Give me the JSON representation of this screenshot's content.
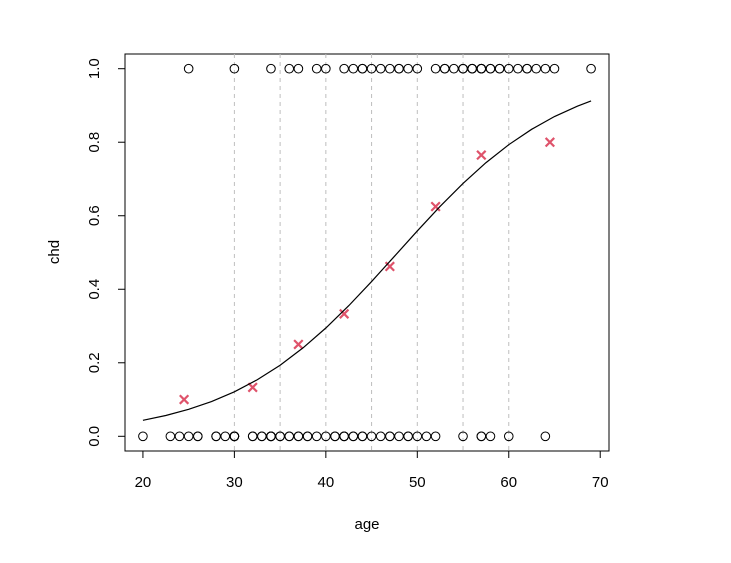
{
  "chart_data": {
    "type": "scatter",
    "xlabel": "age",
    "ylabel": "chd",
    "xlim": [
      18.04,
      70.96
    ],
    "ylim": [
      -0.04,
      1.04
    ],
    "xticks": [
      20,
      30,
      40,
      50,
      60,
      70
    ],
    "yticks": [
      {
        "value": 0,
        "label": "0.0"
      },
      {
        "value": 0.2,
        "label": "0.2"
      },
      {
        "value": 0.4,
        "label": "0.4"
      },
      {
        "value": 0.6,
        "label": "0.6"
      },
      {
        "value": 0.8,
        "label": "0.8"
      },
      {
        "value": 1,
        "label": "1.0"
      }
    ],
    "vlines": [
      30,
      35,
      40,
      45,
      50,
      55,
      60
    ],
    "vline_color": "#bebebe",
    "series": [
      {
        "style": "circle",
        "color": "#000000",
        "x": [
          20,
          23,
          24,
          25,
          25,
          26,
          26,
          28,
          28,
          29,
          30,
          30,
          30,
          30,
          30,
          30,
          32,
          32,
          33,
          33,
          34,
          34,
          34,
          34,
          34,
          35,
          35,
          36,
          36,
          36,
          37,
          37,
          37,
          38,
          38,
          39,
          39,
          40,
          40,
          41,
          41,
          42,
          42,
          42,
          42,
          43,
          43,
          43,
          44,
          44,
          44,
          44,
          45,
          45,
          46,
          46,
          47,
          47,
          47,
          48,
          48,
          48,
          49,
          49,
          49,
          50,
          50,
          51,
          52,
          52,
          53,
          53,
          54,
          55,
          55,
          55,
          56,
          56,
          56,
          57,
          57,
          57,
          57,
          57,
          57,
          58,
          58,
          58,
          59,
          59,
          60,
          60,
          61,
          62,
          62,
          63,
          64,
          64,
          65,
          69
        ],
        "values": [
          0,
          0,
          0,
          0,
          1,
          0,
          0,
          0,
          0,
          0,
          0,
          0,
          0,
          0,
          0,
          1,
          0,
          0,
          0,
          0,
          0,
          0,
          1,
          0,
          0,
          0,
          0,
          0,
          1,
          0,
          0,
          1,
          0,
          0,
          0,
          0,
          1,
          0,
          1,
          0,
          0,
          0,
          0,
          0,
          1,
          0,
          0,
          1,
          0,
          0,
          1,
          1,
          0,
          1,
          0,
          1,
          0,
          0,
          1,
          0,
          1,
          1,
          0,
          0,
          1,
          0,
          1,
          0,
          0,
          1,
          1,
          1,
          1,
          0,
          1,
          1,
          1,
          1,
          1,
          0,
          0,
          1,
          1,
          1,
          1,
          0,
          1,
          1,
          1,
          1,
          0,
          1,
          1,
          1,
          1,
          1,
          0,
          1,
          1,
          1
        ]
      },
      {
        "style": "cross",
        "color": "#df536b",
        "x": [
          24.5,
          32,
          37,
          42,
          47,
          52,
          57,
          64.5
        ],
        "values": [
          0.1,
          0.133,
          0.25,
          0.333,
          0.462,
          0.625,
          0.765,
          0.8
        ]
      },
      {
        "style": "line",
        "color": "#000000",
        "x": [
          20,
          22.5,
          25,
          27.5,
          30,
          32.5,
          35,
          37.5,
          40,
          42.5,
          45,
          47.5,
          50,
          52.5,
          55,
          57.5,
          60,
          62.5,
          65,
          67.5,
          69
        ],
        "values": [
          0.0435,
          0.0566,
          0.0734,
          0.0946,
          0.1211,
          0.1538,
          0.1934,
          0.2405,
          0.2946,
          0.3552,
          0.421,
          0.4896,
          0.5587,
          0.6256,
          0.688,
          0.7442,
          0.7933,
          0.8351,
          0.8699,
          0.8981,
          0.9123
        ]
      }
    ]
  }
}
